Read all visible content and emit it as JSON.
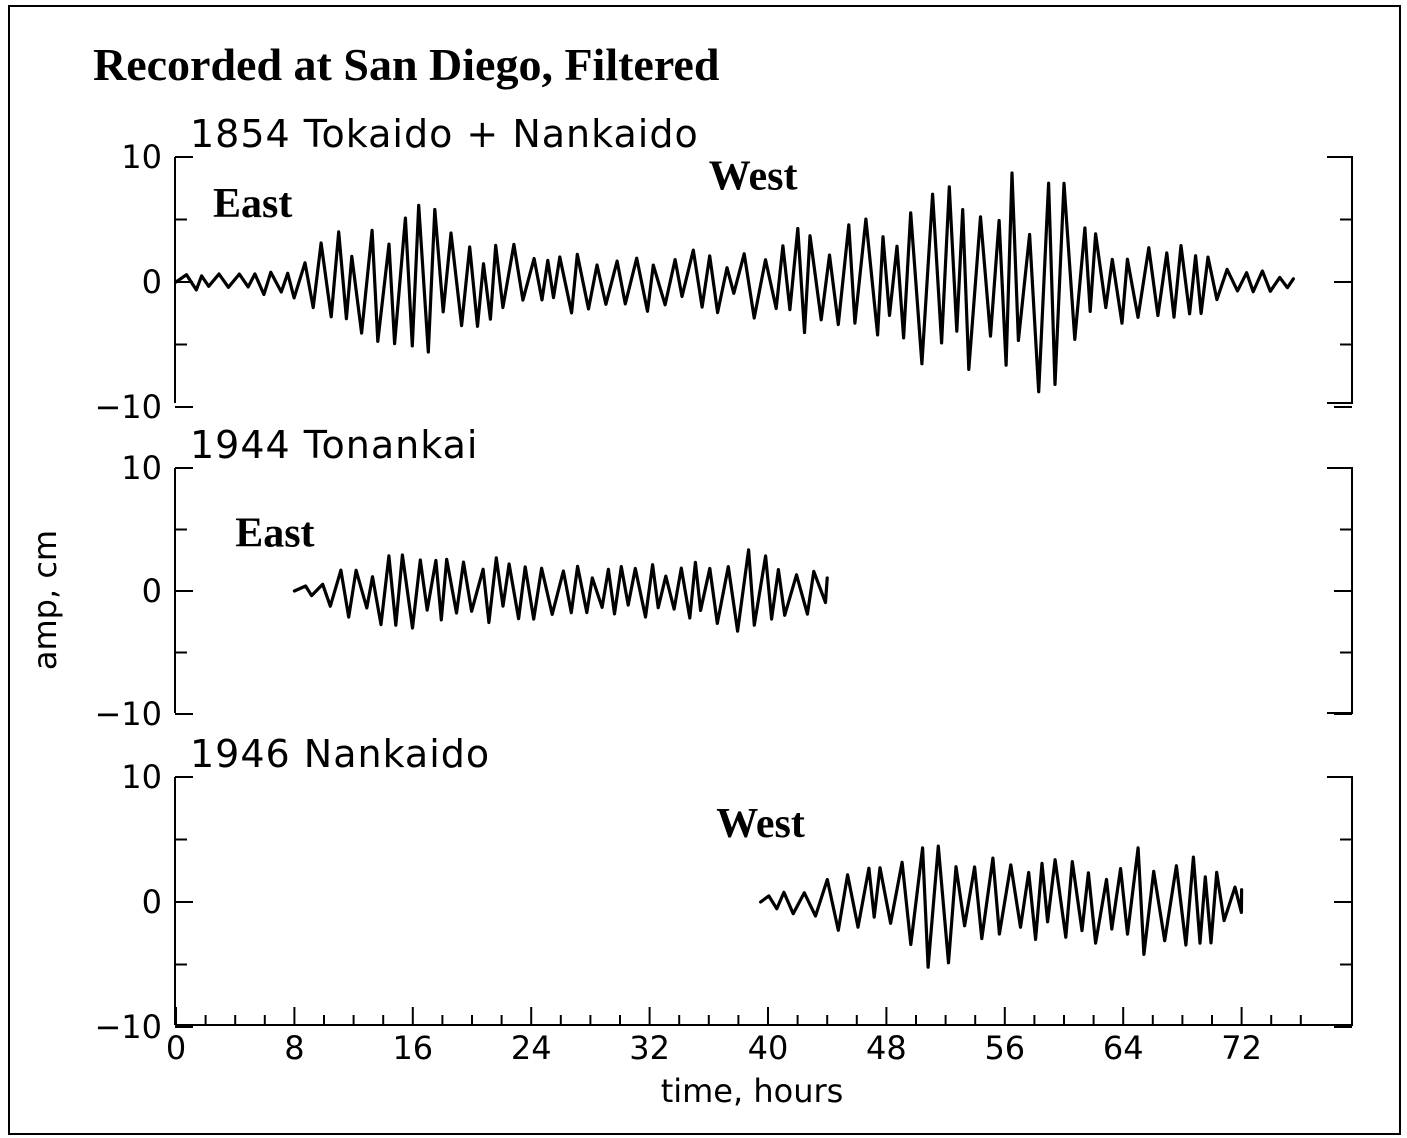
{
  "chart_data": {
    "type": "line",
    "title": "Recorded at San Diego, Filtered",
    "xlabel": "time,  hours",
    "ylabel": "amp,  cm",
    "xlim": [
      0,
      76
    ],
    "x_ticks": [
      0,
      8,
      16,
      24,
      32,
      40,
      48,
      56,
      64,
      72
    ],
    "x_tick_labels": [
      "0",
      "8",
      "16",
      "24",
      "32",
      "40",
      "48",
      "56",
      "64",
      "72"
    ],
    "grid": false,
    "panels": [
      {
        "name": "1854 Tokaido + Nankaido",
        "ylim": [
          -10,
          10
        ],
        "y_tick_labels": [
          "10",
          "0",
          "−10"
        ],
        "x_range": [
          0,
          75.5
        ],
        "envelope": [
          [
            0,
            0.6
          ],
          [
            4,
            0.8
          ],
          [
            8,
            1.4
          ],
          [
            9.5,
            2.2
          ],
          [
            10.5,
            5.5
          ],
          [
            13,
            4.6
          ],
          [
            15,
            6.5
          ],
          [
            17,
            7.0
          ],
          [
            19,
            4.2
          ],
          [
            22,
            3.3
          ],
          [
            26,
            2.6
          ],
          [
            30,
            2.4
          ],
          [
            34,
            2.6
          ],
          [
            38,
            2.4
          ],
          [
            41,
            4.6
          ],
          [
            44,
            4.2
          ],
          [
            48,
            5.5
          ],
          [
            51,
            7.6
          ],
          [
            54,
            9.0
          ],
          [
            57,
            10.0
          ],
          [
            59,
            9.6
          ],
          [
            61,
            7.0
          ],
          [
            63,
            4.0
          ],
          [
            66,
            3.4
          ],
          [
            69,
            3.0
          ],
          [
            71,
            1.5
          ],
          [
            73,
            1.1
          ],
          [
            75.5,
            0.5
          ]
        ],
        "annotations": [
          {
            "text": "East",
            "x": 2.5,
            "y": 5.2
          },
          {
            "text": "West",
            "x": 36,
            "y": 7.4
          }
        ]
      },
      {
        "name": "1944 Tonankai",
        "ylim": [
          -10,
          10
        ],
        "y_tick_labels": [
          "10",
          "0",
          "−10"
        ],
        "x_range": [
          8,
          44
        ],
        "envelope": [
          [
            8,
            0.3
          ],
          [
            10,
            0.8
          ],
          [
            11,
            2.0
          ],
          [
            13,
            2.4
          ],
          [
            15,
            3.2
          ],
          [
            18,
            3.4
          ],
          [
            21,
            3.0
          ],
          [
            24,
            2.6
          ],
          [
            27,
            2.2
          ],
          [
            30,
            2.0
          ],
          [
            32,
            2.6
          ],
          [
            35,
            3.2
          ],
          [
            38,
            3.6
          ],
          [
            41,
            3.0
          ],
          [
            43,
            2.0
          ],
          [
            44,
            1.2
          ]
        ],
        "annotations": [
          {
            "text": "East",
            "x": 4,
            "y": 3.6
          }
        ]
      },
      {
        "name": "1946 Nankaido",
        "ylim": [
          -10,
          10
        ],
        "y_tick_labels": [
          "10",
          "0",
          "−10"
        ],
        "x_range": [
          39.5,
          72
        ],
        "envelope": [
          [
            39.5,
            0.4
          ],
          [
            41,
            0.9
          ],
          [
            43,
            1.6
          ],
          [
            45,
            2.6
          ],
          [
            48,
            3.0
          ],
          [
            50,
            4.0
          ],
          [
            51.5,
            6.4
          ],
          [
            54,
            3.6
          ],
          [
            57,
            4.2
          ],
          [
            60,
            3.2
          ],
          [
            63,
            3.6
          ],
          [
            65,
            4.6
          ],
          [
            67,
            3.4
          ],
          [
            69.5,
            4.0
          ],
          [
            71,
            2.0
          ],
          [
            72,
            1.0
          ]
        ],
        "annotations": [
          {
            "text": "West",
            "x": 36.5,
            "y": 5.2
          }
        ]
      }
    ]
  }
}
